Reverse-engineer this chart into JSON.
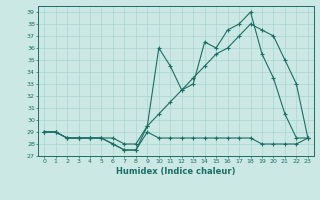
{
  "xlabel": "Humidex (Indice chaleur)",
  "bg_color": "#cce8e4",
  "grid_color": "#aad4d0",
  "line_color": "#1a6e64",
  "xlim": [
    -0.5,
    23.5
  ],
  "ylim": [
    27.0,
    39.5
  ],
  "yticks": [
    27,
    28,
    29,
    30,
    31,
    32,
    33,
    34,
    35,
    36,
    37,
    38,
    39
  ],
  "xticks": [
    0,
    1,
    2,
    3,
    4,
    5,
    6,
    7,
    8,
    9,
    10,
    11,
    12,
    13,
    14,
    15,
    16,
    17,
    18,
    19,
    20,
    21,
    22,
    23
  ],
  "series": [
    [
      29.0,
      29.0,
      28.5,
      28.5,
      28.5,
      28.5,
      28.0,
      27.5,
      27.5,
      29.0,
      28.5,
      28.5,
      28.5,
      28.5,
      28.5,
      28.5,
      28.5,
      28.5,
      28.5,
      28.0,
      28.0,
      28.0,
      28.0,
      28.5
    ],
    [
      29.0,
      29.0,
      28.5,
      28.5,
      28.5,
      28.5,
      28.0,
      27.5,
      27.5,
      29.5,
      36.0,
      34.5,
      32.5,
      33.0,
      36.5,
      36.0,
      37.5,
      38.0,
      39.0,
      35.5,
      33.5,
      30.5,
      28.5,
      28.5
    ],
    [
      29.0,
      29.0,
      28.5,
      28.5,
      28.5,
      28.5,
      28.5,
      28.0,
      28.0,
      29.5,
      30.5,
      31.5,
      32.5,
      33.5,
      34.5,
      35.5,
      36.0,
      37.0,
      38.0,
      37.5,
      37.0,
      35.0,
      33.0,
      28.5
    ]
  ]
}
